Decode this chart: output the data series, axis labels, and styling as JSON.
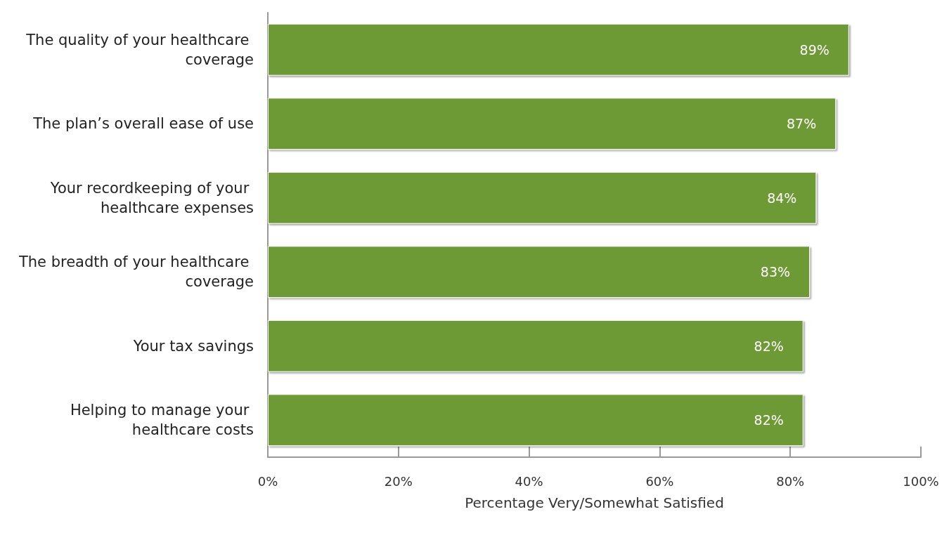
{
  "chart_data": {
    "type": "bar",
    "orientation": "horizontal",
    "xlabel": "Percentage Very/Somewhat Satisfied",
    "categories": [
      "The quality of your healthcare coverage",
      "The plan’s overall ease of use",
      "Your recordkeeping of your healthcare expenses",
      "The breadth of your healthcare coverage",
      "Your tax savings",
      "Helping to manage your healthcare costs"
    ],
    "values": [
      89,
      87,
      84,
      83,
      82,
      82
    ],
    "value_labels": [
      "89%",
      "87%",
      "84%",
      "83%",
      "82%",
      "82%"
    ],
    "color": "#6e9a35",
    "xlim": [
      0,
      100
    ],
    "xticks": [
      {
        "value": 0,
        "label": "0%"
      },
      {
        "value": 20,
        "label": "20%"
      },
      {
        "value": 40,
        "label": "40%"
      },
      {
        "value": 60,
        "label": "60%"
      },
      {
        "value": 80,
        "label": "80%"
      },
      {
        "value": 100,
        "label": "100%"
      }
    ],
    "grid": false
  }
}
